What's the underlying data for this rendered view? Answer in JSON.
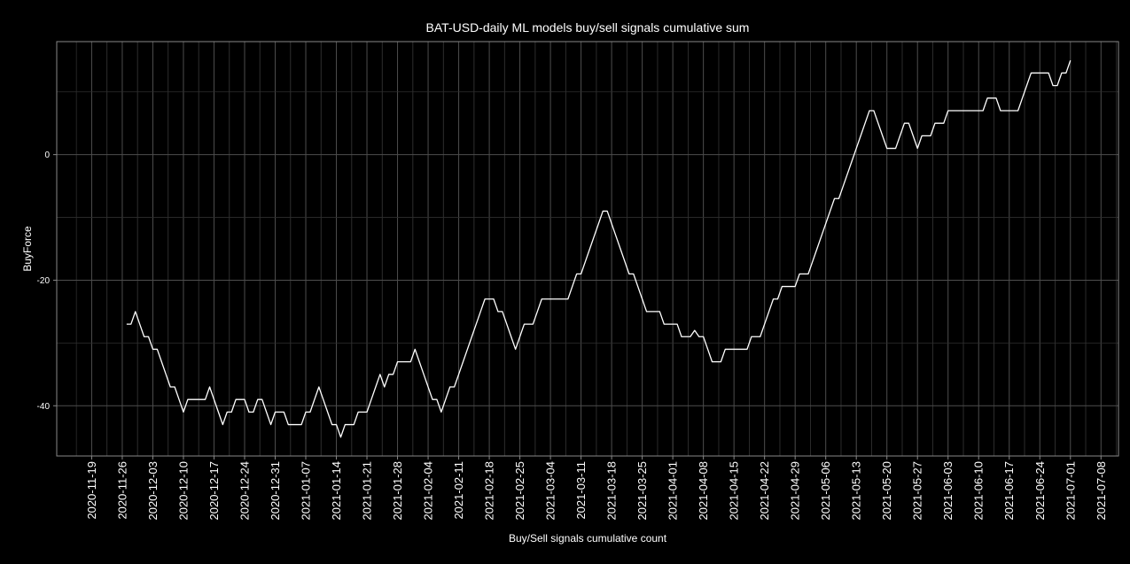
{
  "chart_data": {
    "type": "line",
    "title": "BAT-USD-daily ML models buy/sell signals cumulative sum",
    "xlabel": "Buy/Sell signals cumulative count",
    "ylabel": "BuyForce",
    "xlim": [
      "2020-11-11",
      "2021-07-12"
    ],
    "ylim": [
      -48,
      18
    ],
    "y_ticks": [
      0,
      -20,
      -40
    ],
    "x_ticks": [
      "2020-11-19",
      "2020-11-26",
      "2020-12-03",
      "2020-12-10",
      "2020-12-17",
      "2020-12-24",
      "2020-12-31",
      "2021-01-07",
      "2021-01-14",
      "2021-01-21",
      "2021-01-28",
      "2021-02-04",
      "2021-02-11",
      "2021-02-18",
      "2021-02-25",
      "2021-03-04",
      "2021-03-11",
      "2021-03-18",
      "2021-03-25",
      "2021-04-01",
      "2021-04-08",
      "2021-04-15",
      "2021-04-22",
      "2021-04-29",
      "2021-05-06",
      "2021-05-13",
      "2021-05-20",
      "2021-05-27",
      "2021-06-03",
      "2021-06-10",
      "2021-06-17",
      "2021-06-24",
      "2021-07-01",
      "2021-07-08"
    ],
    "grid": true,
    "background": "#000000",
    "line_color": "#ffffff",
    "grid_color": "#4d4d4d",
    "series": [
      {
        "points": [
          [
            "2020-11-27",
            -27
          ],
          [
            "2020-11-28",
            -27
          ],
          [
            "2020-11-29",
            -25
          ],
          [
            "2020-11-30",
            -27
          ],
          [
            "2020-12-01",
            -29
          ],
          [
            "2020-12-02",
            -29
          ],
          [
            "2020-12-03",
            -31
          ],
          [
            "2020-12-04",
            -31
          ],
          [
            "2020-12-05",
            -33
          ],
          [
            "2020-12-06",
            -35
          ],
          [
            "2020-12-07",
            -37
          ],
          [
            "2020-12-08",
            -37
          ],
          [
            "2020-12-09",
            -39
          ],
          [
            "2020-12-10",
            -41
          ],
          [
            "2020-12-11",
            -39
          ],
          [
            "2020-12-12",
            -39
          ],
          [
            "2020-12-13",
            -39
          ],
          [
            "2020-12-14",
            -39
          ],
          [
            "2020-12-15",
            -39
          ],
          [
            "2020-12-16",
            -37
          ],
          [
            "2020-12-17",
            -39
          ],
          [
            "2020-12-18",
            -41
          ],
          [
            "2020-12-19",
            -43
          ],
          [
            "2020-12-20",
            -41
          ],
          [
            "2020-12-21",
            -41
          ],
          [
            "2020-12-22",
            -39
          ],
          [
            "2020-12-23",
            -39
          ],
          [
            "2020-12-24",
            -39
          ],
          [
            "2020-12-25",
            -41
          ],
          [
            "2020-12-26",
            -41
          ],
          [
            "2020-12-27",
            -39
          ],
          [
            "2020-12-28",
            -39
          ],
          [
            "2020-12-29",
            -41
          ],
          [
            "2020-12-30",
            -43
          ],
          [
            "2020-12-31",
            -41
          ],
          [
            "2021-01-01",
            -41
          ],
          [
            "2021-01-02",
            -41
          ],
          [
            "2021-01-03",
            -43
          ],
          [
            "2021-01-04",
            -43
          ],
          [
            "2021-01-05",
            -43
          ],
          [
            "2021-01-06",
            -43
          ],
          [
            "2021-01-07",
            -41
          ],
          [
            "2021-01-08",
            -41
          ],
          [
            "2021-01-09",
            -39
          ],
          [
            "2021-01-10",
            -37
          ],
          [
            "2021-01-11",
            -39
          ],
          [
            "2021-01-12",
            -41
          ],
          [
            "2021-01-13",
            -43
          ],
          [
            "2021-01-14",
            -43
          ],
          [
            "2021-01-15",
            -45
          ],
          [
            "2021-01-16",
            -43
          ],
          [
            "2021-01-17",
            -43
          ],
          [
            "2021-01-18",
            -43
          ],
          [
            "2021-01-19",
            -41
          ],
          [
            "2021-01-20",
            -41
          ],
          [
            "2021-01-21",
            -41
          ],
          [
            "2021-01-22",
            -39
          ],
          [
            "2021-01-23",
            -37
          ],
          [
            "2021-01-24",
            -35
          ],
          [
            "2021-01-25",
            -37
          ],
          [
            "2021-01-26",
            -35
          ],
          [
            "2021-01-27",
            -35
          ],
          [
            "2021-01-28",
            -33
          ],
          [
            "2021-01-29",
            -33
          ],
          [
            "2021-01-30",
            -33
          ],
          [
            "2021-01-31",
            -33
          ],
          [
            "2021-02-01",
            -31
          ],
          [
            "2021-02-02",
            -33
          ],
          [
            "2021-02-03",
            -35
          ],
          [
            "2021-02-04",
            -37
          ],
          [
            "2021-02-05",
            -39
          ],
          [
            "2021-02-06",
            -39
          ],
          [
            "2021-02-07",
            -41
          ],
          [
            "2021-02-08",
            -39
          ],
          [
            "2021-02-09",
            -37
          ],
          [
            "2021-02-10",
            -37
          ],
          [
            "2021-02-11",
            -35
          ],
          [
            "2021-02-12",
            -33
          ],
          [
            "2021-02-13",
            -31
          ],
          [
            "2021-02-14",
            -29
          ],
          [
            "2021-02-15",
            -27
          ],
          [
            "2021-02-16",
            -25
          ],
          [
            "2021-02-17",
            -23
          ],
          [
            "2021-02-18",
            -23
          ],
          [
            "2021-02-19",
            -23
          ],
          [
            "2021-02-20",
            -25
          ],
          [
            "2021-02-21",
            -25
          ],
          [
            "2021-02-22",
            -27
          ],
          [
            "2021-02-23",
            -29
          ],
          [
            "2021-02-24",
            -31
          ],
          [
            "2021-02-25",
            -29
          ],
          [
            "2021-02-26",
            -27
          ],
          [
            "2021-02-27",
            -27
          ],
          [
            "2021-02-28",
            -27
          ],
          [
            "2021-03-01",
            -25
          ],
          [
            "2021-03-02",
            -23
          ],
          [
            "2021-03-03",
            -23
          ],
          [
            "2021-03-04",
            -23
          ],
          [
            "2021-03-05",
            -23
          ],
          [
            "2021-03-06",
            -23
          ],
          [
            "2021-03-07",
            -23
          ],
          [
            "2021-03-08",
            -23
          ],
          [
            "2021-03-09",
            -21
          ],
          [
            "2021-03-10",
            -19
          ],
          [
            "2021-03-11",
            -19
          ],
          [
            "2021-03-12",
            -17
          ],
          [
            "2021-03-13",
            -15
          ],
          [
            "2021-03-14",
            -13
          ],
          [
            "2021-03-15",
            -11
          ],
          [
            "2021-03-16",
            -9
          ],
          [
            "2021-03-17",
            -9
          ],
          [
            "2021-03-18",
            -11
          ],
          [
            "2021-03-19",
            -13
          ],
          [
            "2021-03-20",
            -15
          ],
          [
            "2021-03-21",
            -17
          ],
          [
            "2021-03-22",
            -19
          ],
          [
            "2021-03-23",
            -19
          ],
          [
            "2021-03-24",
            -21
          ],
          [
            "2021-03-25",
            -23
          ],
          [
            "2021-03-26",
            -25
          ],
          [
            "2021-03-27",
            -25
          ],
          [
            "2021-03-28",
            -25
          ],
          [
            "2021-03-29",
            -25
          ],
          [
            "2021-03-30",
            -27
          ],
          [
            "2021-03-31",
            -27
          ],
          [
            "2021-04-01",
            -27
          ],
          [
            "2021-04-02",
            -27
          ],
          [
            "2021-04-03",
            -29
          ],
          [
            "2021-04-04",
            -29
          ],
          [
            "2021-04-05",
            -29
          ],
          [
            "2021-04-06",
            -28
          ],
          [
            "2021-04-07",
            -29
          ],
          [
            "2021-04-08",
            -29
          ],
          [
            "2021-04-09",
            -31
          ],
          [
            "2021-04-10",
            -33
          ],
          [
            "2021-04-11",
            -33
          ],
          [
            "2021-04-12",
            -33
          ],
          [
            "2021-04-13",
            -31
          ],
          [
            "2021-04-14",
            -31
          ],
          [
            "2021-04-15",
            -31
          ],
          [
            "2021-04-16",
            -31
          ],
          [
            "2021-04-17",
            -31
          ],
          [
            "2021-04-18",
            -31
          ],
          [
            "2021-04-19",
            -29
          ],
          [
            "2021-04-20",
            -29
          ],
          [
            "2021-04-21",
            -29
          ],
          [
            "2021-04-22",
            -27
          ],
          [
            "2021-04-23",
            -25
          ],
          [
            "2021-04-24",
            -23
          ],
          [
            "2021-04-25",
            -23
          ],
          [
            "2021-04-26",
            -21
          ],
          [
            "2021-04-27",
            -21
          ],
          [
            "2021-04-28",
            -21
          ],
          [
            "2021-04-29",
            -21
          ],
          [
            "2021-04-30",
            -19
          ],
          [
            "2021-05-01",
            -19
          ],
          [
            "2021-05-02",
            -19
          ],
          [
            "2021-05-03",
            -17
          ],
          [
            "2021-05-04",
            -15
          ],
          [
            "2021-05-05",
            -13
          ],
          [
            "2021-05-06",
            -11
          ],
          [
            "2021-05-07",
            -9
          ],
          [
            "2021-05-08",
            -7
          ],
          [
            "2021-05-09",
            -7
          ],
          [
            "2021-05-10",
            -5
          ],
          [
            "2021-05-11",
            -3
          ],
          [
            "2021-05-12",
            -1
          ],
          [
            "2021-05-13",
            1
          ],
          [
            "2021-05-14",
            3
          ],
          [
            "2021-05-15",
            5
          ],
          [
            "2021-05-16",
            7
          ],
          [
            "2021-05-17",
            7
          ],
          [
            "2021-05-18",
            5
          ],
          [
            "2021-05-19",
            3
          ],
          [
            "2021-05-20",
            1
          ],
          [
            "2021-05-21",
            1
          ],
          [
            "2021-05-22",
            1
          ],
          [
            "2021-05-23",
            3
          ],
          [
            "2021-05-24",
            5
          ],
          [
            "2021-05-25",
            5
          ],
          [
            "2021-05-26",
            3
          ],
          [
            "2021-05-27",
            1
          ],
          [
            "2021-05-28",
            3
          ],
          [
            "2021-05-29",
            3
          ],
          [
            "2021-05-30",
            3
          ],
          [
            "2021-05-31",
            5
          ],
          [
            "2021-06-01",
            5
          ],
          [
            "2021-06-02",
            5
          ],
          [
            "2021-06-03",
            7
          ],
          [
            "2021-06-04",
            7
          ],
          [
            "2021-06-05",
            7
          ],
          [
            "2021-06-06",
            7
          ],
          [
            "2021-06-07",
            7
          ],
          [
            "2021-06-08",
            7
          ],
          [
            "2021-06-09",
            7
          ],
          [
            "2021-06-10",
            7
          ],
          [
            "2021-06-11",
            7
          ],
          [
            "2021-06-12",
            9
          ],
          [
            "2021-06-13",
            9
          ],
          [
            "2021-06-14",
            9
          ],
          [
            "2021-06-15",
            7
          ],
          [
            "2021-06-16",
            7
          ],
          [
            "2021-06-17",
            7
          ],
          [
            "2021-06-18",
            7
          ],
          [
            "2021-06-19",
            7
          ],
          [
            "2021-06-20",
            9
          ],
          [
            "2021-06-21",
            11
          ],
          [
            "2021-06-22",
            13
          ],
          [
            "2021-06-23",
            13
          ],
          [
            "2021-06-24",
            13
          ],
          [
            "2021-06-25",
            13
          ],
          [
            "2021-06-26",
            13
          ],
          [
            "2021-06-27",
            11
          ],
          [
            "2021-06-28",
            11
          ],
          [
            "2021-06-29",
            13
          ],
          [
            "2021-06-30",
            13
          ],
          [
            "2021-07-01",
            15
          ]
        ]
      }
    ]
  }
}
